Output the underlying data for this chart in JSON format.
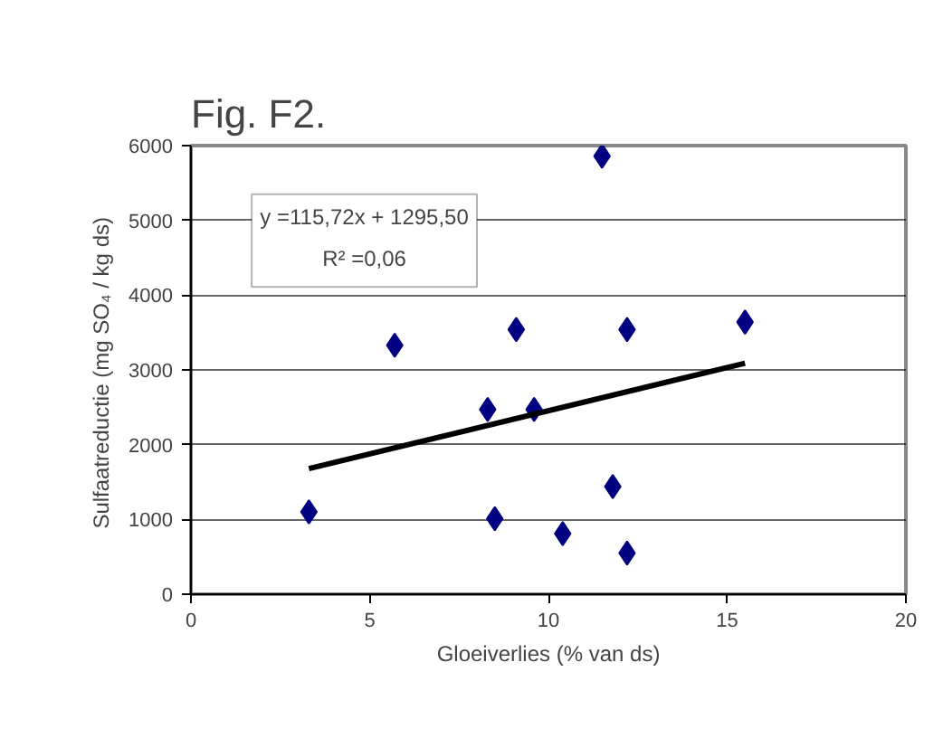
{
  "chart_data": {
    "type": "scatter",
    "title": "Fig. F2.",
    "xlabel": "Gloeiverlies (% van ds)",
    "ylabel": "Sulfaatreductie (mg  SO₄ / kg ds)",
    "annotations": [
      "y =115,72x + 1295,50",
      "R² =0,06"
    ],
    "xlim": [
      0,
      20
    ],
    "xticks": [
      0,
      5,
      10,
      15,
      20
    ],
    "ylim": [
      0,
      6000
    ],
    "yticks": [
      0,
      1000,
      2000,
      3000,
      4000,
      5000,
      6000
    ],
    "grid": "y",
    "marker": "diamond",
    "series": [
      {
        "color": "#000080",
        "x": [
          3.3,
          5.7,
          9.1,
          12.2,
          15.5,
          8.3,
          9.6,
          11.5,
          11.8,
          8.5,
          10.4,
          12.2
        ],
        "values": [
          1100,
          3330,
          3540,
          3540,
          3640,
          2470,
          2470,
          5860,
          1440,
          1010,
          810,
          550
        ]
      },
      {
        "type": "line",
        "color": "#000000",
        "marker": "none",
        "x": [
          3.3,
          15.5
        ],
        "values": [
          1680,
          3090
        ]
      }
    ]
  }
}
